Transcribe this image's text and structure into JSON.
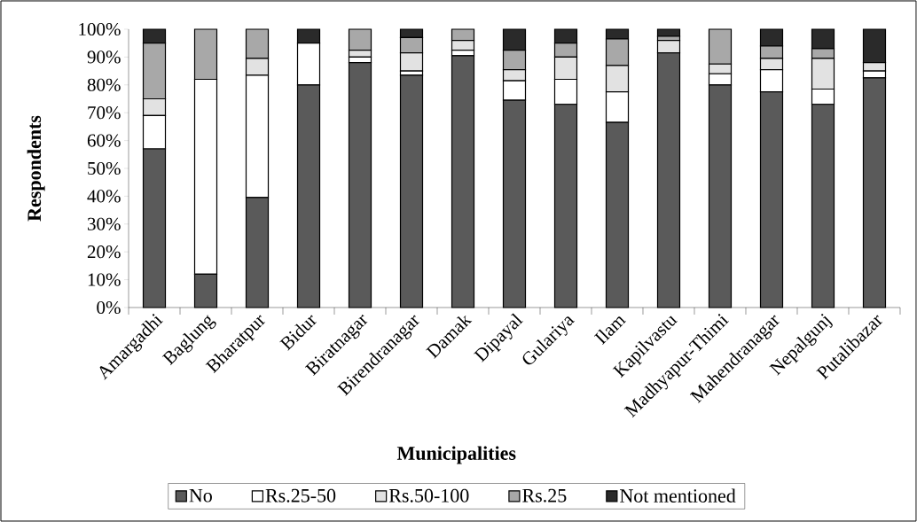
{
  "chart_data": {
    "type": "bar",
    "stacked": true,
    "xlabel": "Municipalities",
    "ylabel": "Respondents",
    "categories": [
      "Amargadhi",
      "Baglung",
      "Bharatpur",
      "Bidur",
      "Biratnagar",
      "Birendranagar",
      "Damak",
      "Dipayal",
      "Gulariya",
      "Ilam",
      "Kapilvastu",
      "Madhyapur-Thimi",
      "Mahendranagar",
      "Nepalgunj",
      "Putalibazar"
    ],
    "series": [
      {
        "name": "No",
        "color": "#5a5a5a",
        "values": [
          57,
          12,
          39.5,
          80,
          88,
          83.5,
          90.5,
          74.5,
          73,
          66.5,
          91.5,
          80,
          77.5,
          73,
          82.5
        ]
      },
      {
        "name": "Rs.25-50",
        "color": "#ffffff",
        "values": [
          12,
          70,
          44,
          15,
          2,
          1.5,
          2,
          7,
          9,
          11,
          0,
          4,
          8,
          5.5,
          2.5
        ]
      },
      {
        "name": "Rs.50-100",
        "color": "#e2e2e2",
        "values": [
          6,
          0,
          6,
          0,
          2.5,
          6.5,
          3.5,
          4,
          8,
          9.5,
          4.5,
          3.5,
          4,
          11,
          3
        ]
      },
      {
        "name": "Rs.25",
        "color": "#a8a8a8",
        "values": [
          20,
          18,
          10.5,
          0,
          7.5,
          5.5,
          4,
          7,
          5,
          9.5,
          1.5,
          12.5,
          4.5,
          3.5,
          0
        ]
      },
      {
        "name": "Not mentioned",
        "color": "#2a2a2a",
        "values": [
          5,
          0,
          0,
          5,
          0,
          3,
          0,
          7.5,
          5,
          3.5,
          2.5,
          0,
          6,
          7,
          12
        ]
      }
    ],
    "ylim": [
      0,
      100
    ],
    "yticks": [
      {
        "value": 0,
        "label": "0%"
      },
      {
        "value": 10,
        "label": "10%"
      },
      {
        "value": 20,
        "label": "20%"
      },
      {
        "value": 30,
        "label": "30%"
      },
      {
        "value": 40,
        "label": "40%"
      },
      {
        "value": 50,
        "label": "50%"
      },
      {
        "value": 60,
        "label": "60%"
      },
      {
        "value": 70,
        "label": "70%"
      },
      {
        "value": 80,
        "label": "80%"
      },
      {
        "value": 90,
        "label": "90%"
      },
      {
        "value": 100,
        "label": "100%"
      }
    ],
    "legend": "bottom"
  }
}
